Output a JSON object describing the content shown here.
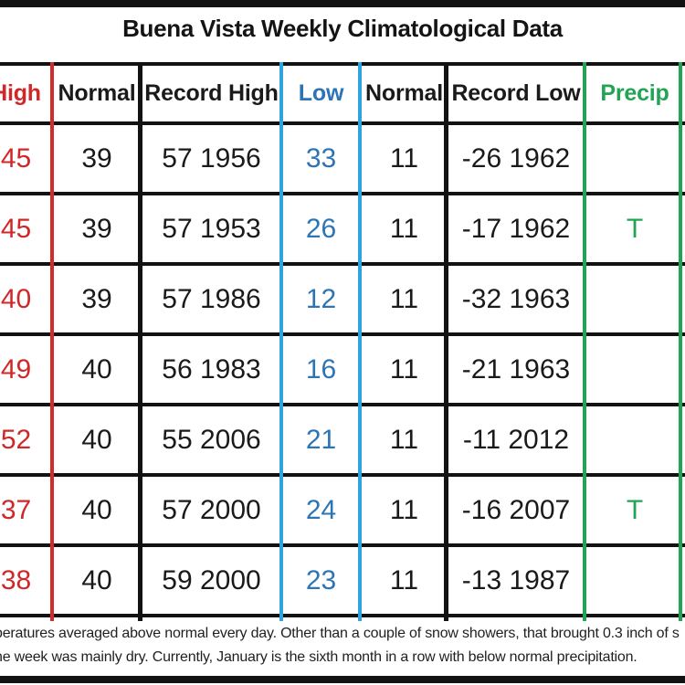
{
  "title": "Buena Vista Weekly Climatological Data",
  "chart_data": {
    "type": "table",
    "title": "Buena Vista Weekly Climatological Data",
    "columns": [
      "High",
      "Normal",
      "Record High",
      "Low",
      "Normal",
      "Record Low",
      "Precip"
    ],
    "rows": [
      [
        "45",
        "39",
        "57 1956",
        "33",
        "11",
        "-26 1962",
        ""
      ],
      [
        "45",
        "39",
        "57 1953",
        "26",
        "11",
        "-17 1962",
        "T"
      ],
      [
        "40",
        "39",
        "57 1986",
        "12",
        "11",
        "-32 1963",
        ""
      ],
      [
        "49",
        "40",
        "56 1983",
        "16",
        "11",
        "-21 1963",
        ""
      ],
      [
        "52",
        "40",
        "55 2006",
        "21",
        "11",
        "-11 2012",
        ""
      ],
      [
        "37",
        "40",
        "57 2000",
        "24",
        "11",
        "-16 2007",
        "T"
      ],
      [
        "38",
        "40",
        "59 2000",
        "23",
        "11",
        "-13 1987",
        ""
      ]
    ],
    "footnote_line1": "peratures averaged above normal every day.  Other than a couple of snow showers, that brought 0.3 inch of s",
    "footnote_line2": "he week was mainly dry.  Currently, January is the sixth month in a row with below normal precipitation."
  },
  "colors": {
    "high": "#d02828",
    "low": "#2d74b5",
    "precip": "#22a455",
    "line-red": "#d42a2a",
    "line-blue": "#2fa3dc",
    "line-green": "#22a455",
    "grid": "#121212"
  }
}
